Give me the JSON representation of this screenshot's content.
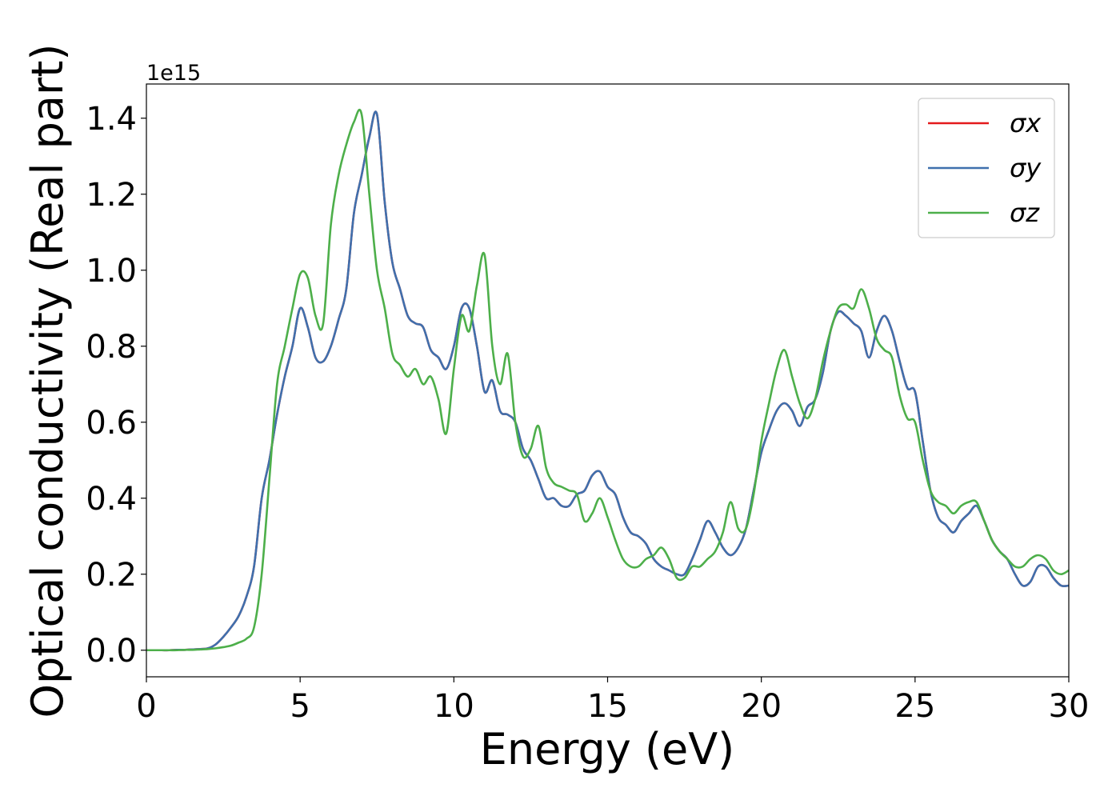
{
  "chart_data": {
    "type": "line",
    "x_label": "Energy (eV)",
    "y_label": "Optical conductivity (Real part)",
    "y_offset_label": "1e15",
    "x": [
      0,
      0.25,
      0.5,
      0.75,
      1,
      1.25,
      1.5,
      1.75,
      2,
      2.25,
      2.5,
      2.75,
      3,
      3.25,
      3.5,
      3.75,
      4,
      4.25,
      4.5,
      4.75,
      5,
      5.25,
      5.5,
      5.75,
      6,
      6.25,
      6.5,
      6.75,
      7,
      7.25,
      7.5,
      7.75,
      8,
      8.25,
      8.5,
      8.75,
      9,
      9.25,
      9.5,
      9.75,
      10,
      10.25,
      10.5,
      10.75,
      11,
      11.25,
      11.5,
      11.75,
      12,
      12.25,
      12.5,
      12.75,
      13,
      13.25,
      13.5,
      13.75,
      14,
      14.25,
      14.5,
      14.75,
      15,
      15.25,
      15.5,
      15.75,
      16,
      16.25,
      16.5,
      16.75,
      17,
      17.25,
      17.5,
      17.75,
      18,
      18.25,
      18.5,
      18.75,
      19,
      19.25,
      19.5,
      19.75,
      20,
      20.25,
      20.5,
      20.75,
      21,
      21.25,
      21.5,
      21.75,
      22,
      22.25,
      22.5,
      22.75,
      23,
      23.25,
      23.5,
      23.75,
      24,
      24.25,
      24.5,
      24.75,
      25,
      25.25,
      25.5,
      25.75,
      26,
      26.25,
      26.5,
      26.75,
      27,
      27.25,
      27.5,
      27.75,
      28,
      28.25,
      28.5,
      28.75,
      29,
      29.25,
      29.5,
      29.75,
      30
    ],
    "series": [
      {
        "name": "σx",
        "color": "#e41a1c",
        "values": [
          0,
          0,
          0,
          0,
          0.001,
          0.001,
          0.002,
          0.003,
          0.005,
          0.015,
          0.035,
          0.06,
          0.09,
          0.14,
          0.22,
          0.4,
          0.5,
          0.62,
          0.72,
          0.8,
          0.9,
          0.85,
          0.77,
          0.76,
          0.8,
          0.87,
          0.95,
          1.15,
          1.25,
          1.35,
          1.41,
          1.18,
          1.02,
          0.95,
          0.88,
          0.86,
          0.85,
          0.79,
          0.77,
          0.74,
          0.8,
          0.9,
          0.9,
          0.8,
          0.68,
          0.71,
          0.63,
          0.62,
          0.6,
          0.53,
          0.5,
          0.45,
          0.4,
          0.4,
          0.38,
          0.38,
          0.41,
          0.42,
          0.46,
          0.47,
          0.43,
          0.41,
          0.35,
          0.31,
          0.3,
          0.28,
          0.24,
          0.22,
          0.21,
          0.2,
          0.2,
          0.24,
          0.29,
          0.34,
          0.31,
          0.27,
          0.25,
          0.27,
          0.32,
          0.42,
          0.52,
          0.58,
          0.63,
          0.65,
          0.63,
          0.59,
          0.64,
          0.66,
          0.73,
          0.84,
          0.89,
          0.88,
          0.86,
          0.84,
          0.77,
          0.84,
          0.88,
          0.84,
          0.76,
          0.69,
          0.68,
          0.55,
          0.42,
          0.35,
          0.33,
          0.31,
          0.34,
          0.36,
          0.38,
          0.34,
          0.29,
          0.26,
          0.24,
          0.2,
          0.17,
          0.18,
          0.22,
          0.22,
          0.19,
          0.17,
          0.17
        ]
      },
      {
        "name": "σy",
        "color": "#3f70ad",
        "values": [
          0,
          0,
          0,
          0,
          0.001,
          0.001,
          0.002,
          0.003,
          0.005,
          0.015,
          0.035,
          0.06,
          0.09,
          0.14,
          0.22,
          0.4,
          0.5,
          0.62,
          0.72,
          0.8,
          0.9,
          0.85,
          0.77,
          0.76,
          0.8,
          0.87,
          0.95,
          1.15,
          1.25,
          1.35,
          1.41,
          1.18,
          1.02,
          0.95,
          0.88,
          0.86,
          0.85,
          0.79,
          0.77,
          0.74,
          0.8,
          0.9,
          0.9,
          0.8,
          0.68,
          0.71,
          0.63,
          0.62,
          0.6,
          0.53,
          0.5,
          0.45,
          0.4,
          0.4,
          0.38,
          0.38,
          0.41,
          0.42,
          0.46,
          0.47,
          0.43,
          0.41,
          0.35,
          0.31,
          0.3,
          0.28,
          0.24,
          0.22,
          0.21,
          0.2,
          0.2,
          0.24,
          0.29,
          0.34,
          0.31,
          0.27,
          0.25,
          0.27,
          0.32,
          0.42,
          0.52,
          0.58,
          0.63,
          0.65,
          0.63,
          0.59,
          0.64,
          0.66,
          0.73,
          0.84,
          0.89,
          0.88,
          0.86,
          0.84,
          0.77,
          0.84,
          0.88,
          0.84,
          0.76,
          0.69,
          0.68,
          0.55,
          0.42,
          0.35,
          0.33,
          0.31,
          0.34,
          0.36,
          0.38,
          0.34,
          0.29,
          0.26,
          0.24,
          0.2,
          0.17,
          0.18,
          0.22,
          0.22,
          0.19,
          0.17,
          0.17
        ]
      },
      {
        "name": "σz",
        "color": "#4daf4a",
        "values": [
          0,
          0,
          0,
          0,
          0,
          0.001,
          0.001,
          0.002,
          0.003,
          0.005,
          0.008,
          0.012,
          0.02,
          0.03,
          0.06,
          0.2,
          0.45,
          0.7,
          0.8,
          0.9,
          0.99,
          0.98,
          0.88,
          0.86,
          1.12,
          1.25,
          1.33,
          1.39,
          1.41,
          1.2,
          1.0,
          0.9,
          0.78,
          0.75,
          0.72,
          0.74,
          0.7,
          0.72,
          0.66,
          0.57,
          0.74,
          0.88,
          0.84,
          0.96,
          1.04,
          0.8,
          0.7,
          0.78,
          0.6,
          0.51,
          0.53,
          0.59,
          0.48,
          0.44,
          0.43,
          0.42,
          0.41,
          0.34,
          0.36,
          0.4,
          0.35,
          0.29,
          0.24,
          0.22,
          0.22,
          0.24,
          0.25,
          0.27,
          0.24,
          0.19,
          0.19,
          0.22,
          0.22,
          0.24,
          0.26,
          0.31,
          0.39,
          0.32,
          0.32,
          0.41,
          0.55,
          0.65,
          0.74,
          0.79,
          0.72,
          0.65,
          0.61,
          0.66,
          0.76,
          0.84,
          0.9,
          0.91,
          0.9,
          0.95,
          0.9,
          0.82,
          0.79,
          0.77,
          0.67,
          0.61,
          0.6,
          0.5,
          0.42,
          0.39,
          0.38,
          0.36,
          0.38,
          0.39,
          0.39,
          0.34,
          0.29,
          0.26,
          0.24,
          0.22,
          0.22,
          0.24,
          0.25,
          0.24,
          0.21,
          0.2,
          0.21
        ]
      }
    ],
    "xlim": [
      0,
      30
    ],
    "xticks": [
      0,
      5,
      10,
      15,
      20,
      25,
      30
    ],
    "ylim": [
      -0.07,
      1.49
    ],
    "yticks": [
      {
        "value": 0,
        "label": "0.0"
      },
      0.2,
      0.4,
      0.6,
      0.8,
      {
        "value": 1,
        "label": "1.0"
      },
      1.2,
      1.4
    ],
    "grid": false,
    "legend": "upper right"
  }
}
